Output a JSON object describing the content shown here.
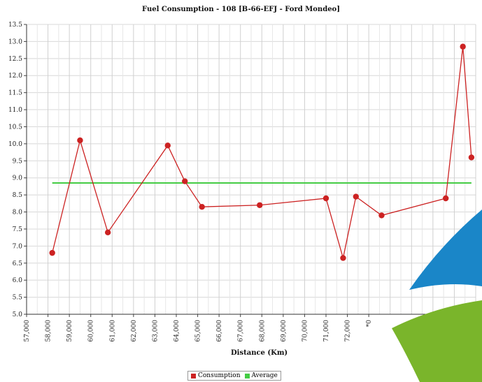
{
  "chart_data": {
    "type": "line",
    "title": "Fuel Consumption - 108 [B-66-EFJ - Ford Mondeo]",
    "xlabel": "Distance (Km)",
    "ylabel": "",
    "x_tick_labels": [
      "57,000",
      "58,000",
      "59,000",
      "60,000",
      "61,000",
      "62,000",
      "63,000",
      "64,000",
      "65,000",
      "66,000",
      "67,000",
      "68,000",
      "69,000",
      "70,000",
      "71,000",
      "72,000",
      "*0"
    ],
    "y_tick_labels": [
      "5.0",
      "5.5",
      "6.0",
      "6.5",
      "7.0",
      "7.5",
      "8.0",
      "8.5",
      "9.0",
      "9.5",
      "10.0",
      "10.5",
      "11.0",
      "11.5",
      "12.0",
      "12.5",
      "13.0",
      "13.5"
    ],
    "ylim": [
      5.0,
      13.5
    ],
    "grid": true,
    "legend_placement": "bottom",
    "series": [
      {
        "name": "Consumption",
        "color": "#cc2222",
        "x": [
          58200,
          59500,
          60800,
          63600,
          64400,
          65200,
          67900,
          71000,
          71800,
          72400,
          73600,
          76600,
          77400,
          77800
        ],
        "values": [
          6.8,
          10.1,
          7.4,
          9.95,
          8.9,
          8.15,
          8.2,
          8.4,
          6.65,
          8.45,
          7.9,
          8.4,
          12.85,
          9.6
        ]
      },
      {
        "name": "Average",
        "color": "#44cc44",
        "x": [
          58200,
          77800
        ],
        "values": [
          8.85,
          8.85
        ]
      }
    ]
  }
}
